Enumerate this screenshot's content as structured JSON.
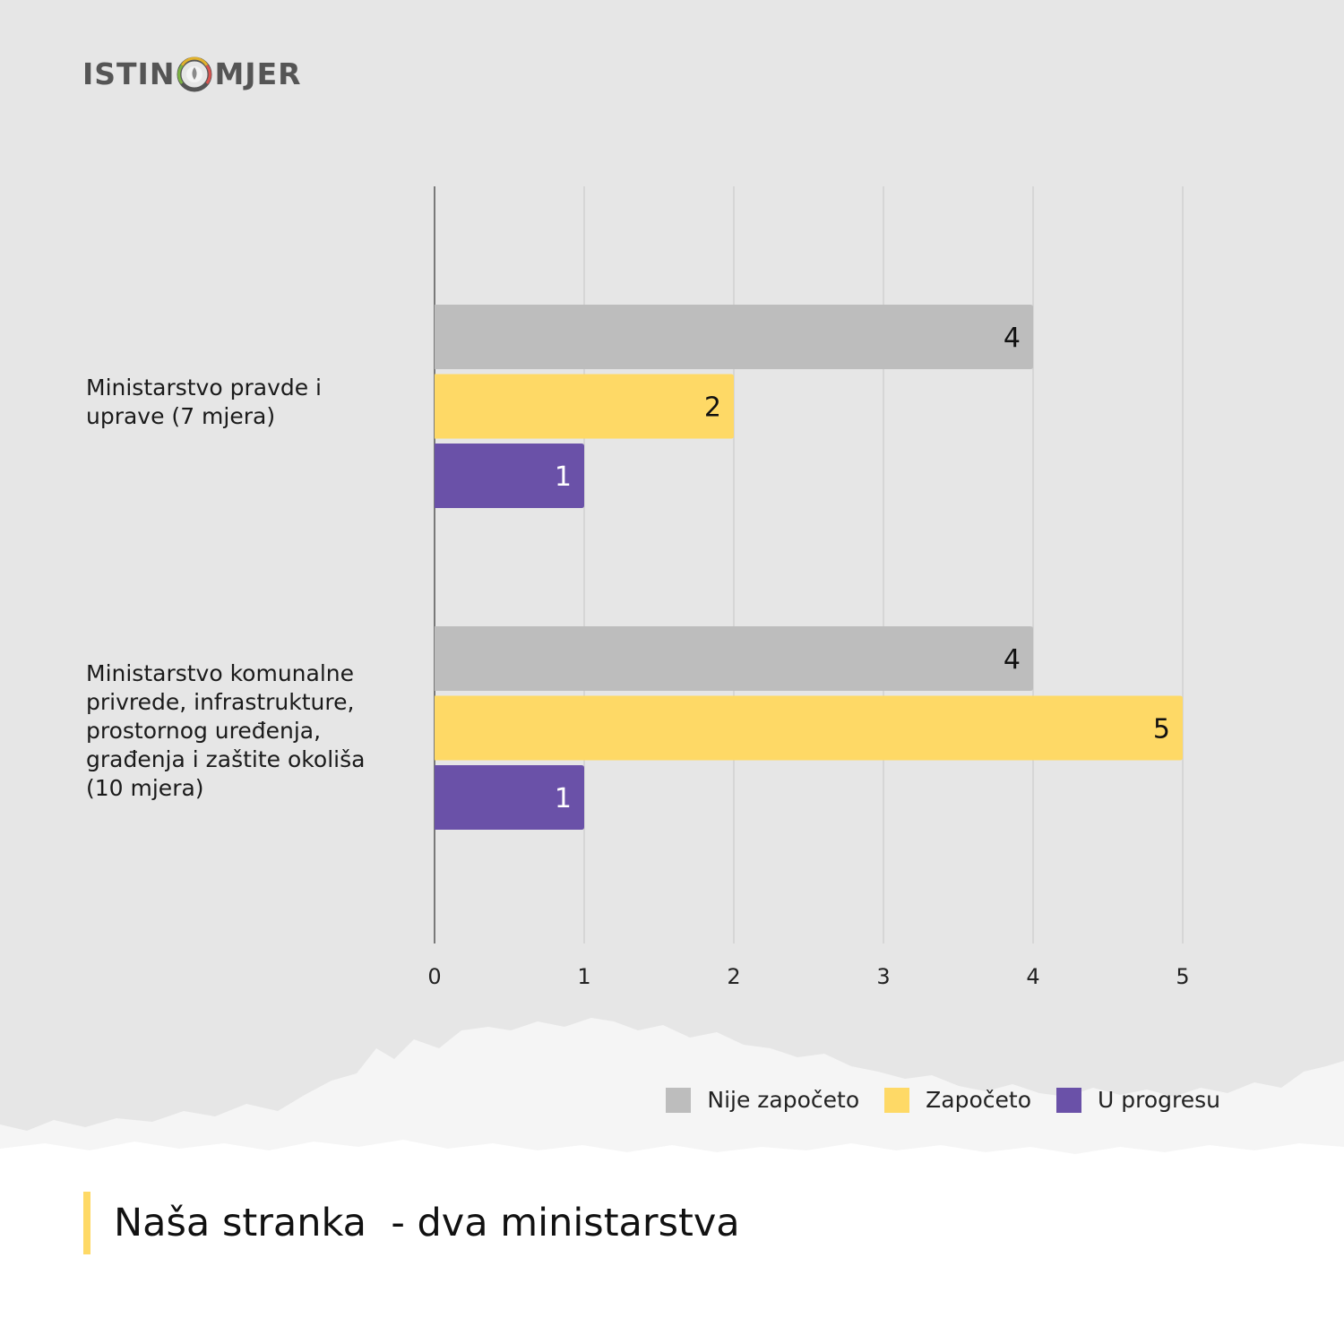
{
  "logo": {
    "text_left": "ISTIN",
    "text_right": "MJER"
  },
  "colors": {
    "background": "#e6e6e6",
    "grid": "#d0d0d0",
    "axis": "#555555",
    "nije_zapoceto": "#bdbdbd",
    "zapoceto": "#fed966",
    "u_progresu": "#6a51a8",
    "title_accent": "#fed966"
  },
  "title": "Naša stranka  - dva ministarstva",
  "chart_data": {
    "type": "bar",
    "orientation": "horizontal",
    "categories": [
      "Ministarstvo pravde i uprave (7 mjera)",
      "Ministarstvo komunalne privrede, infrastrukture, prostornog uređenja, građenja i zaštite okoliša (10 mjera)"
    ],
    "series": [
      {
        "name": "Nije započeto",
        "values": [
          4,
          4
        ]
      },
      {
        "name": "Započeto",
        "values": [
          2,
          5
        ]
      },
      {
        "name": "U progresu",
        "values": [
          1,
          1
        ]
      }
    ],
    "xlim": [
      0,
      5
    ],
    "xticks": [
      "0",
      "1",
      "2",
      "3",
      "4",
      "5"
    ],
    "grid": true,
    "legend": "bottom-right",
    "data_labels": true
  }
}
